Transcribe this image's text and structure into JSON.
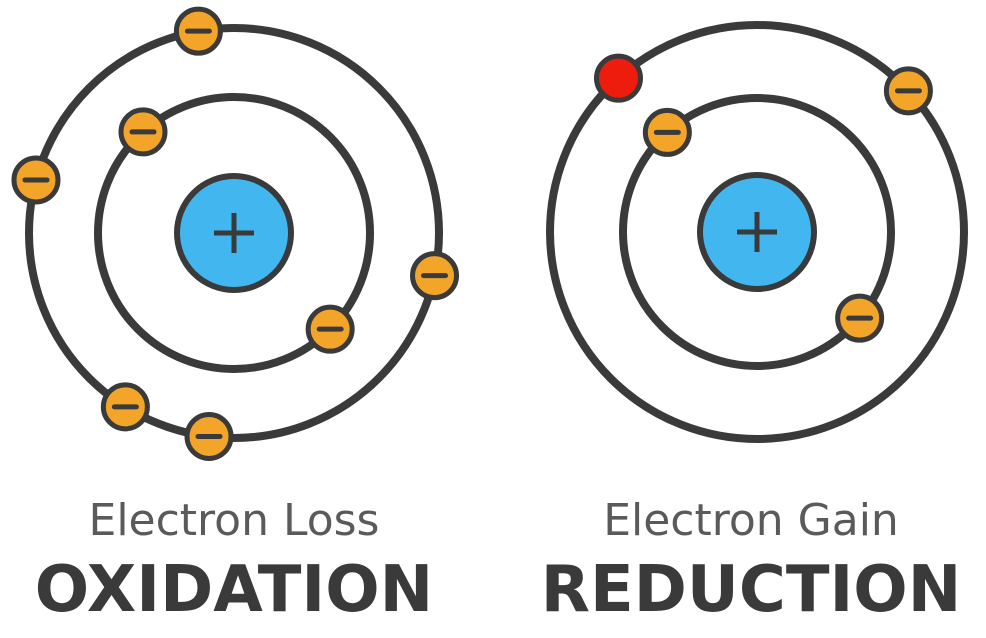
{
  "colors": {
    "orbit": "#3a3a3a",
    "nucleus": "#42b6ee",
    "electron": "#f3a52a",
    "gained_electron": "#ee1c0c",
    "subtitle_text": "#5a5a5a",
    "title_text": "#3a3a3a"
  },
  "atoms": [
    {
      "id": "oxidation",
      "subtitle": "Electron Loss",
      "title": "OXIDATION",
      "outer_electron_count": 5,
      "inner_electron_count": 2,
      "gained_electron_count": 0
    },
    {
      "id": "reduction",
      "subtitle": "Electron Gain",
      "title": "REDUCTION",
      "outer_electron_count": 2,
      "inner_electron_count": 2,
      "gained_electron_count": 1
    }
  ]
}
